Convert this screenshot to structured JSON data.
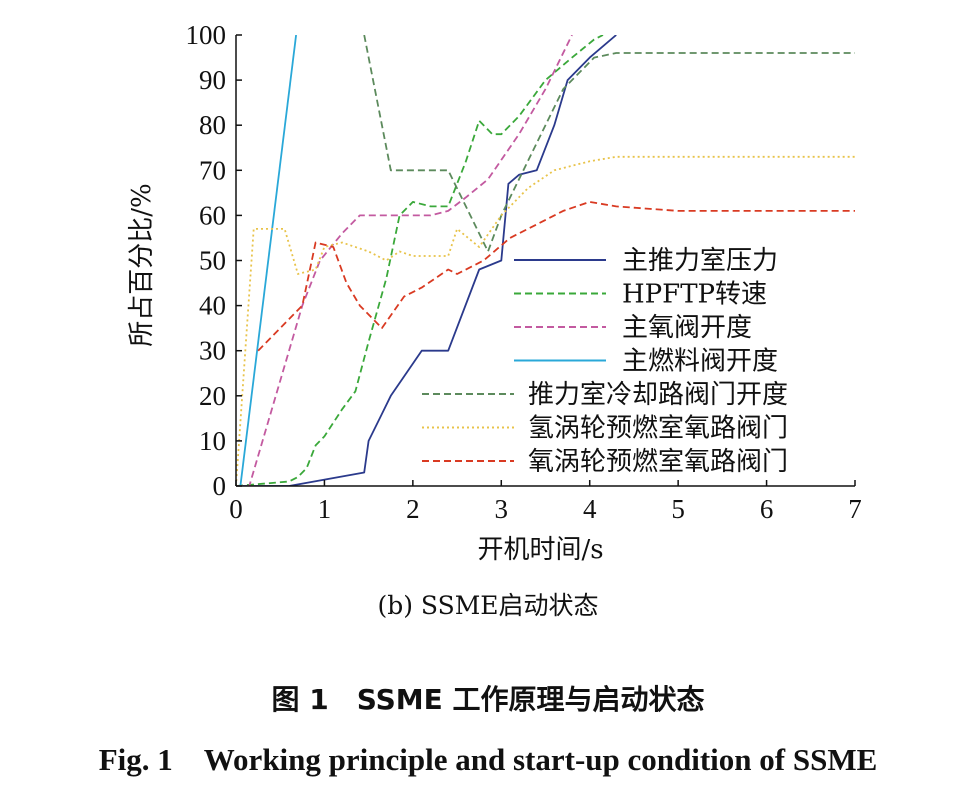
{
  "chart_data": {
    "type": "line",
    "xlabel": "开机时间/s",
    "ylabel": "所占百分比/%",
    "xlim": [
      0,
      7
    ],
    "ylim": [
      0,
      100
    ],
    "xticks": [
      "0",
      "1",
      "2",
      "3",
      "4",
      "5",
      "6",
      "7"
    ],
    "yticks": [
      "0",
      "10",
      "20",
      "30",
      "40",
      "50",
      "60",
      "70",
      "80",
      "90",
      "100"
    ],
    "grid": false,
    "legend_position": "center-right",
    "series": [
      {
        "name": "主推力室压力",
        "color": "#2b3a8c",
        "dash": "solid",
        "x": [
          0,
          0.6,
          1.45,
          1.5,
          1.6,
          1.75,
          2.1,
          2.4,
          2.75,
          3.0,
          3.08,
          3.2,
          3.4,
          3.6,
          3.75,
          4.0,
          4.3
        ],
        "y": [
          0,
          0,
          3,
          10,
          14,
          20,
          30,
          30,
          48,
          50,
          67,
          69,
          70,
          80,
          90,
          95,
          100
        ]
      },
      {
        "name": "HPFTP转速",
        "color": "#3aa83a",
        "dash": "dashed",
        "x": [
          0,
          0.6,
          0.7,
          0.8,
          0.9,
          1.0,
          1.2,
          1.35,
          1.5,
          1.7,
          1.85,
          2.0,
          2.2,
          2.4,
          2.6,
          2.75,
          2.9,
          3.0,
          3.2,
          3.5,
          3.8,
          4.05,
          4.15
        ],
        "y": [
          0,
          1,
          2,
          4,
          9,
          11,
          17,
          21,
          32,
          46,
          60,
          63,
          62,
          62,
          72,
          81,
          78,
          78,
          82,
          90,
          95,
          99,
          100
        ]
      },
      {
        "name": "主氧阀开度",
        "color": "#c35aa0",
        "dash": "dashed",
        "x": [
          0,
          0.15,
          0.75,
          0.95,
          1.2,
          1.4,
          1.7,
          2.2,
          2.4,
          2.6,
          2.85,
          3.2,
          3.5,
          3.8
        ],
        "y": [
          0,
          0,
          40,
          50,
          56,
          60,
          60,
          60,
          61,
          64,
          68,
          78,
          88,
          100
        ]
      },
      {
        "name": "主燃料阀开度",
        "color": "#2aa8d8",
        "dash": "solid",
        "x": [
          0.05,
          0.68
        ],
        "y": [
          0,
          100
        ]
      },
      {
        "name": "推力室冷却路阀门开度",
        "color": "#5c8a5c",
        "dash": "dashed",
        "x": [
          1.45,
          1.75,
          2.4,
          2.55,
          2.85,
          3.0,
          3.3,
          3.7,
          4.05,
          4.3,
          5.0,
          6.0,
          7.0
        ],
        "y": [
          100,
          70,
          70,
          64,
          52,
          60,
          72,
          88,
          95,
          96,
          96,
          96,
          96
        ]
      },
      {
        "name": "氢涡轮预燃室氧路阀门",
        "color": "#e8c34a",
        "dash": "dotted",
        "x": [
          0,
          0.2,
          0.55,
          0.7,
          0.9,
          1.0,
          1.2,
          1.5,
          1.7,
          1.85,
          2.0,
          2.4,
          2.5,
          2.75,
          3.0,
          3.3,
          3.6,
          4.0,
          4.3,
          5.0,
          6.0,
          7.0
        ],
        "y": [
          0,
          57,
          57,
          47,
          48,
          53,
          54,
          52,
          50,
          52,
          51,
          51,
          57,
          53,
          60,
          66,
          70,
          72,
          73,
          73,
          73,
          73
        ]
      },
      {
        "name": "氧涡轮预燃室氧路阀门",
        "color": "#d93a22",
        "dash": "dashed",
        "x": [
          0.25,
          0.75,
          0.9,
          1.1,
          1.25,
          1.4,
          1.65,
          1.9,
          2.1,
          2.4,
          2.5,
          2.8,
          3.1,
          3.4,
          3.7,
          4.0,
          4.3,
          5.0,
          6.0,
          7.0
        ],
        "y": [
          30,
          40,
          54,
          53,
          45,
          40,
          35,
          42,
          44,
          48,
          47,
          50,
          55,
          58,
          61,
          63,
          62,
          61,
          61,
          61
        ]
      }
    ]
  },
  "subcaption": "(b) SSME启动状态",
  "figure_caption_cn": "图 1　SSME 工作原理与启动状态",
  "figure_caption_en": "Fig. 1　Working principle and start-up condition of SSME"
}
